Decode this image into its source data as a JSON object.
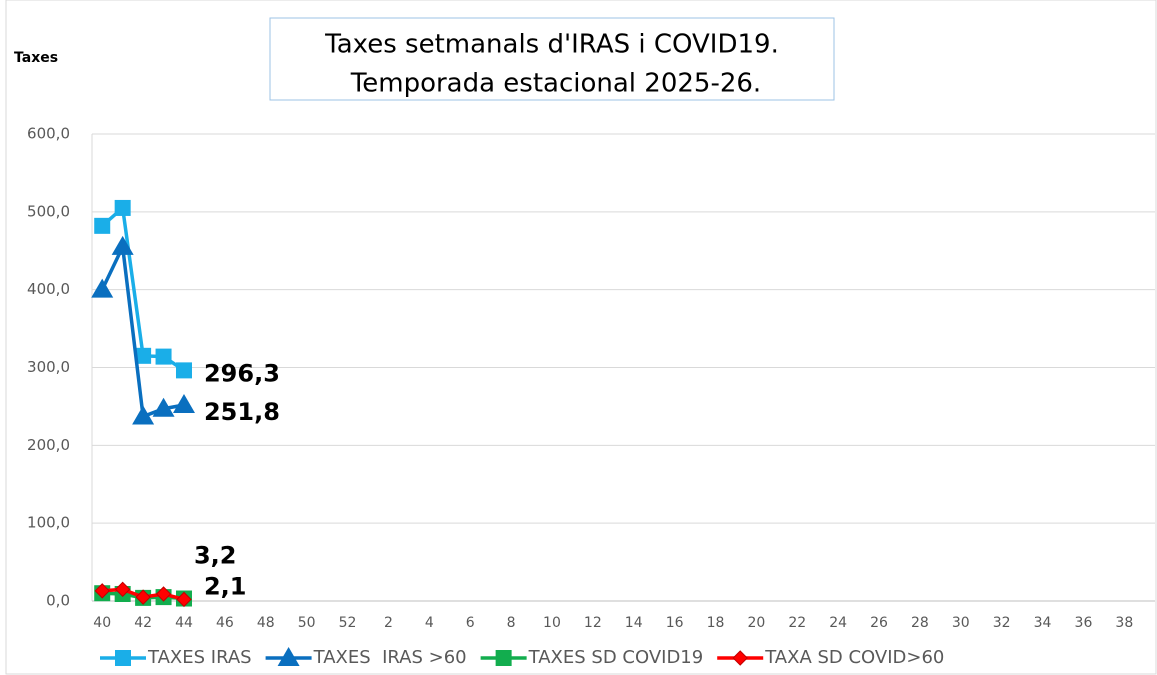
{
  "chart_data": {
    "type": "line",
    "title": [
      "Taxes setmanals d'IRAS i COVID19.",
      "Temporada estacional 2025-26."
    ],
    "y_label": "Taxes",
    "categories": [
      "40",
      null,
      "42",
      null,
      "44",
      null,
      "46",
      null,
      "48",
      null,
      "50",
      null,
      "52",
      null,
      "2",
      null,
      "4",
      null,
      "6",
      null,
      "8",
      null,
      "10",
      null,
      "12",
      null,
      "14",
      null,
      "16",
      null,
      "18",
      null,
      "20",
      null,
      "22",
      null,
      "24",
      null,
      "26",
      null,
      "28",
      null,
      "30",
      null,
      "32",
      null,
      "34",
      null,
      "36",
      null,
      "38",
      null
    ],
    "ylim": [
      0,
      600
    ],
    "yticks": [
      {
        "value": 0,
        "label": "0,0"
      },
      {
        "value": 100,
        "label": "100,0"
      },
      {
        "value": 200,
        "label": "200,0"
      },
      {
        "value": 300,
        "label": "300,0"
      },
      {
        "value": 400,
        "label": "400,0"
      },
      {
        "value": 500,
        "label": "500,0"
      },
      {
        "value": 600,
        "label": "600,0"
      }
    ],
    "grid": true,
    "legend": "bottom",
    "series": [
      {
        "name": "TAXES IRAS",
        "color": "#1aaee8",
        "marker": "square",
        "values": [
          482,
          505,
          315,
          314,
          296.3,
          null,
          null,
          null,
          null,
          null,
          null,
          null,
          null,
          null,
          null,
          null,
          null,
          null,
          null,
          null,
          null,
          null,
          null,
          null,
          null,
          null,
          null,
          null,
          null,
          null,
          null,
          null,
          null,
          null,
          null,
          null,
          null,
          null,
          null,
          null,
          null,
          null,
          null,
          null,
          null,
          null,
          null,
          null,
          null,
          null,
          null,
          null
        ],
        "value_labels": [
          null,
          null,
          null,
          null,
          "296,3",
          null,
          null,
          null,
          null,
          null,
          null,
          null,
          null,
          null,
          null,
          null,
          null,
          null,
          null,
          null,
          null,
          null,
          null,
          null,
          null,
          null,
          null,
          null,
          null,
          null,
          null,
          null,
          null,
          null,
          null,
          null,
          null,
          null,
          null,
          null,
          null,
          null,
          null,
          null,
          null,
          null,
          null,
          null,
          null,
          null,
          null,
          null
        ]
      },
      {
        "name": "TAXES  IRAS >60",
        "color": "#0a6fbf",
        "marker": "triangle",
        "values": [
          400,
          455,
          237,
          247,
          251.8,
          null,
          null,
          null,
          null,
          null,
          null,
          null,
          null,
          null,
          null,
          null,
          null,
          null,
          null,
          null,
          null,
          null,
          null,
          null,
          null,
          null,
          null,
          null,
          null,
          null,
          null,
          null,
          null,
          null,
          null,
          null,
          null,
          null,
          null,
          null,
          null,
          null,
          null,
          null,
          null,
          null,
          null,
          null,
          null,
          null,
          null,
          null
        ],
        "value_labels": [
          null,
          null,
          null,
          null,
          "251,8",
          null,
          null,
          null,
          null,
          null,
          null,
          null,
          null,
          null,
          null,
          null,
          null,
          null,
          null,
          null,
          null,
          null,
          null,
          null,
          null,
          null,
          null,
          null,
          null,
          null,
          null,
          null,
          null,
          null,
          null,
          null,
          null,
          null,
          null,
          null,
          null,
          null,
          null,
          null,
          null,
          null,
          null,
          null,
          null,
          null,
          null,
          null
        ]
      },
      {
        "name": "TAXES SD COVID19",
        "color": "#12ad4e",
        "marker": "square",
        "values": [
          10,
          9,
          4,
          5,
          3.2,
          null,
          null,
          null,
          null,
          null,
          null,
          null,
          null,
          null,
          null,
          null,
          null,
          null,
          null,
          null,
          null,
          null,
          null,
          null,
          null,
          null,
          null,
          null,
          null,
          null,
          null,
          null,
          null,
          null,
          null,
          null,
          null,
          null,
          null,
          null,
          null,
          null,
          null,
          null,
          null,
          null,
          null,
          null,
          null,
          null,
          null,
          null
        ],
        "value_labels": [
          null,
          null,
          null,
          null,
          "3,2",
          null,
          null,
          null,
          null,
          null,
          null,
          null,
          null,
          null,
          null,
          null,
          null,
          null,
          null,
          null,
          null,
          null,
          null,
          null,
          null,
          null,
          null,
          null,
          null,
          null,
          null,
          null,
          null,
          null,
          null,
          null,
          null,
          null,
          null,
          null,
          null,
          null,
          null,
          null,
          null,
          null,
          null,
          null,
          null,
          null,
          null,
          null
        ]
      },
      {
        "name": "TAXA SD COVID>60",
        "color": "#ff0000",
        "marker": "diamond",
        "values": [
          13,
          15,
          5,
          9,
          2.1,
          null,
          null,
          null,
          null,
          null,
          null,
          null,
          null,
          null,
          null,
          null,
          null,
          null,
          null,
          null,
          null,
          null,
          null,
          null,
          null,
          null,
          null,
          null,
          null,
          null,
          null,
          null,
          null,
          null,
          null,
          null,
          null,
          null,
          null,
          null,
          null,
          null,
          null,
          null,
          null,
          null,
          null,
          null,
          null,
          null,
          null,
          null
        ],
        "value_labels": [
          null,
          null,
          null,
          null,
          "2,1",
          null,
          null,
          null,
          null,
          null,
          null,
          null,
          null,
          null,
          null,
          null,
          null,
          null,
          null,
          null,
          null,
          null,
          null,
          null,
          null,
          null,
          null,
          null,
          null,
          null,
          null,
          null,
          null,
          null,
          null,
          null,
          null,
          null,
          null,
          null,
          null,
          null,
          null,
          null,
          null,
          null,
          null,
          null,
          null,
          null,
          null,
          null
        ]
      }
    ]
  }
}
